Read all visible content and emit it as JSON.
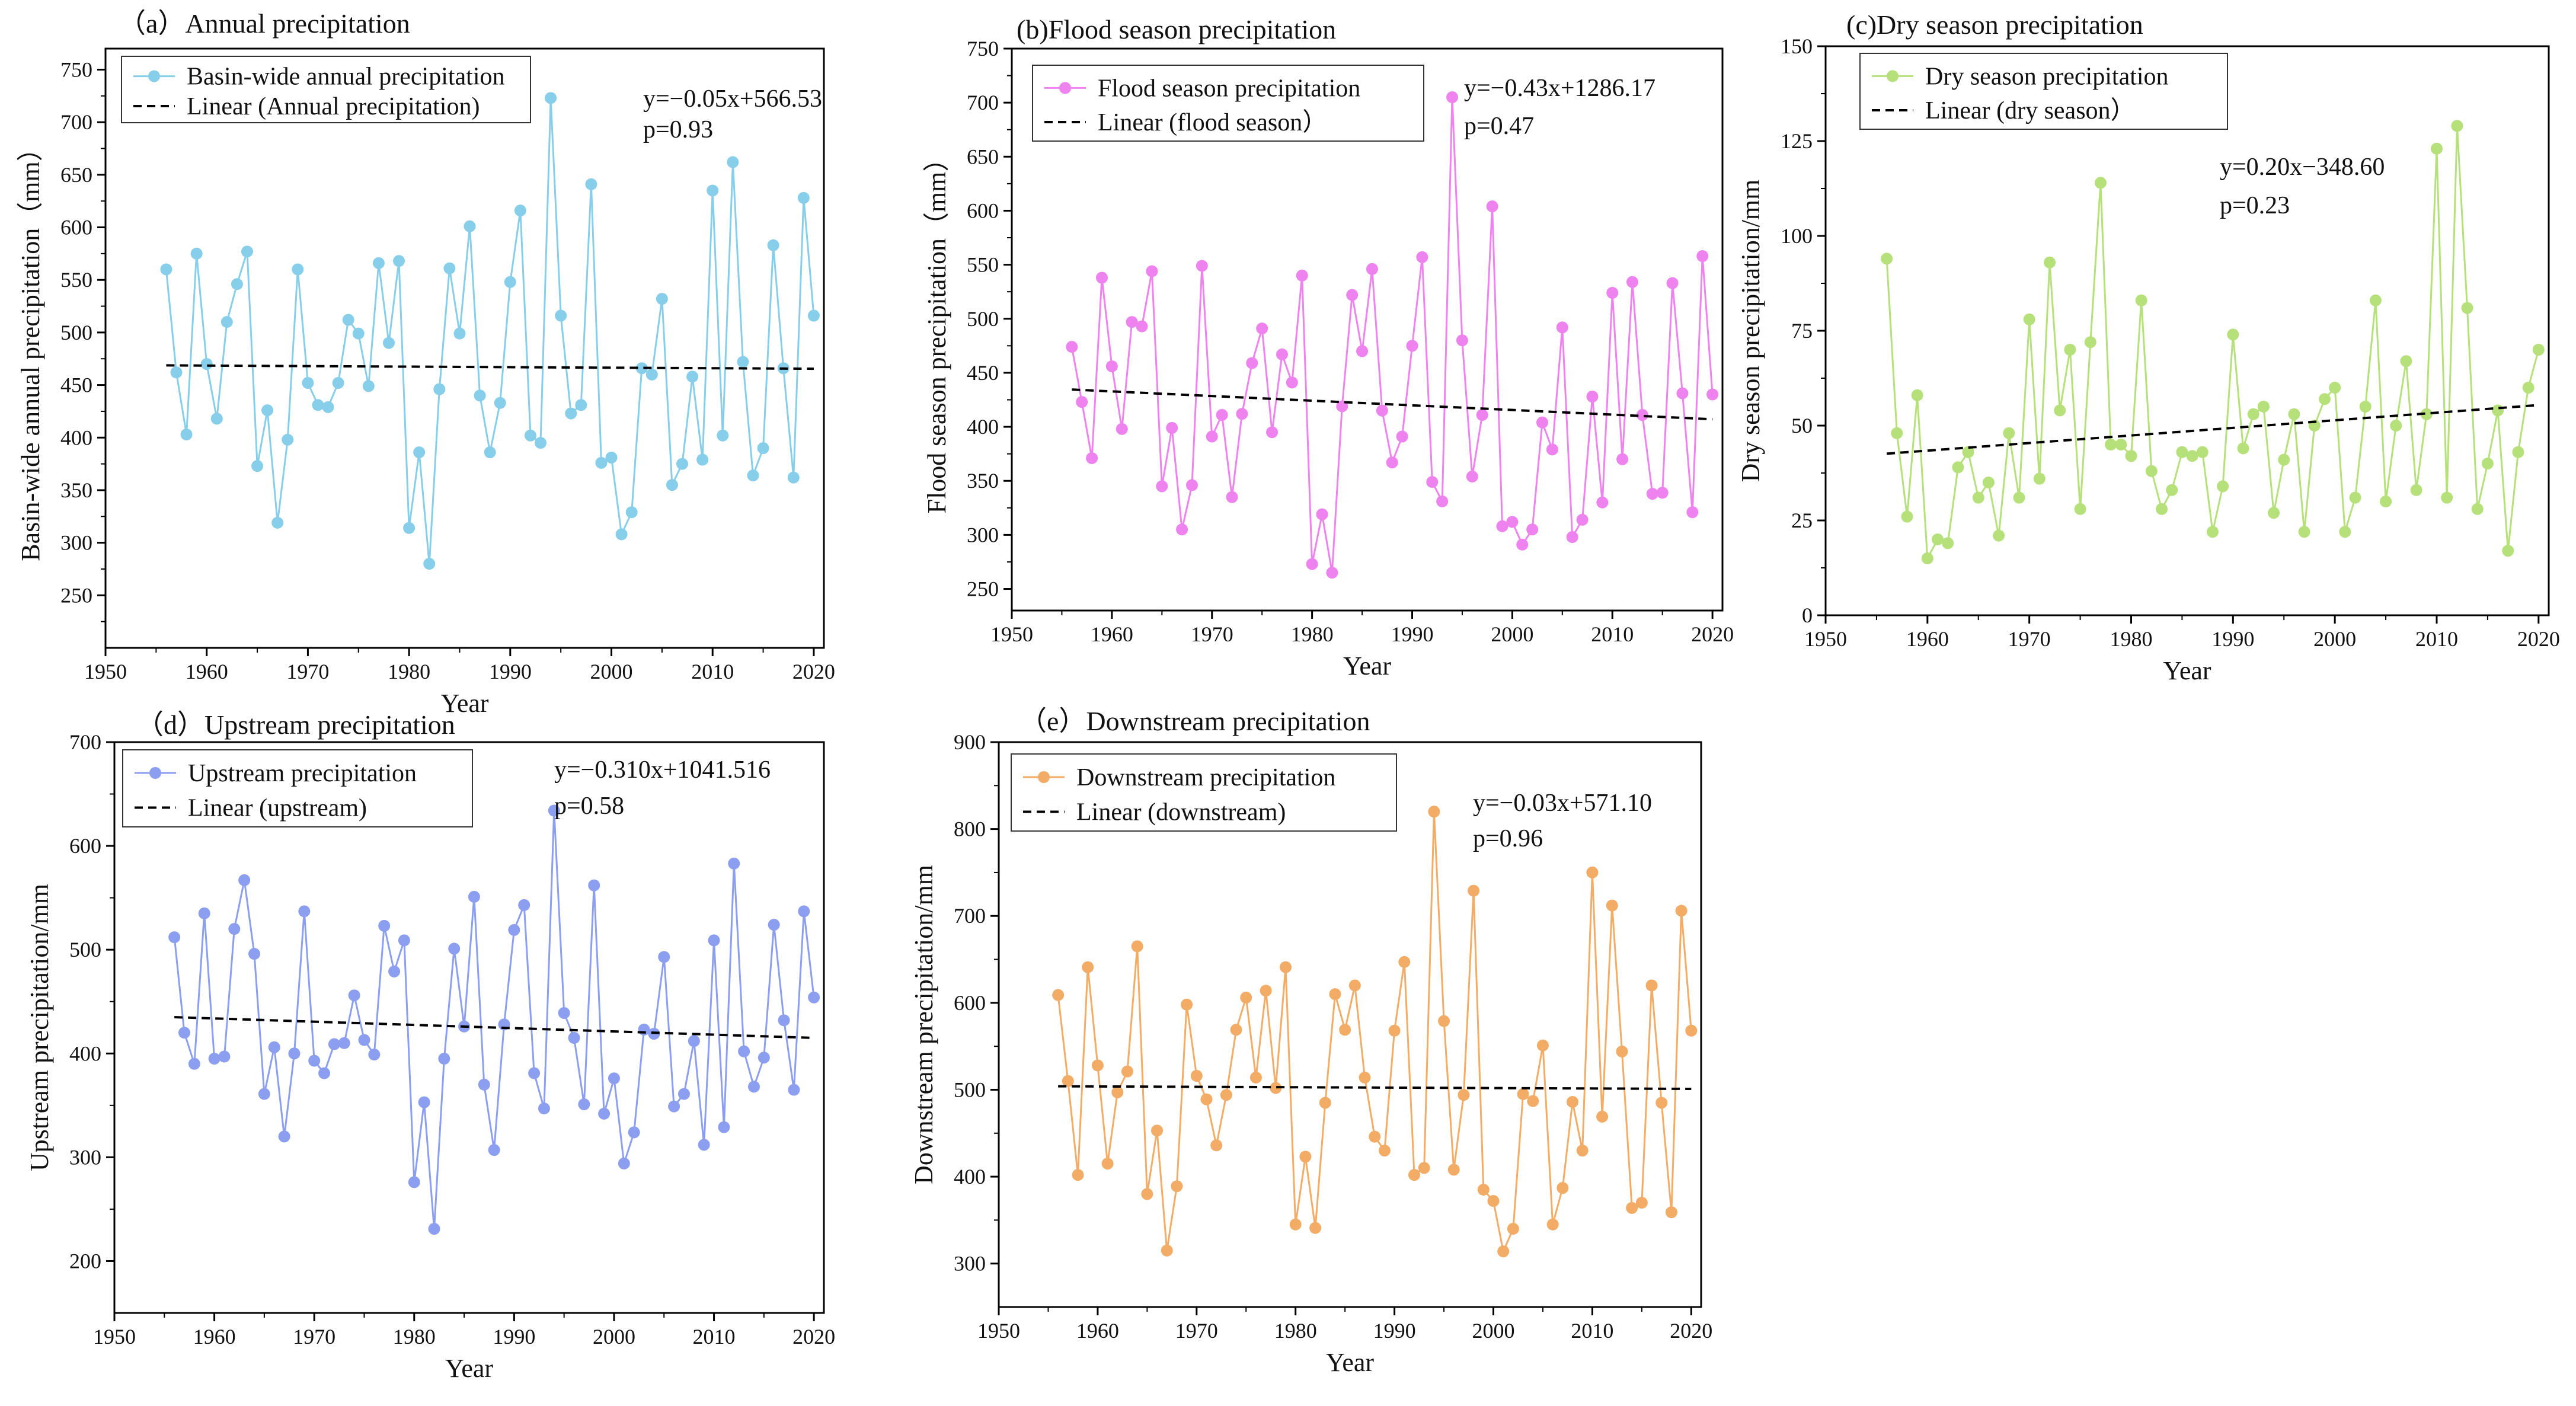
{
  "chart_data": [
    {
      "id": "a",
      "type": "line",
      "title": "（a）Annual precipitation",
      "xlabel": "Year",
      "ylabel": "Basin-wide annual precipitation（mm）",
      "xlim": [
        1950,
        2021
      ],
      "ylim": [
        200,
        770
      ],
      "xticks": [
        1950,
        1960,
        1970,
        1980,
        1990,
        2000,
        2010,
        2020
      ],
      "yticks": [
        250,
        300,
        350,
        400,
        450,
        500,
        550,
        600,
        650,
        700,
        750
      ],
      "color": "#87CEEB",
      "series": [
        {
          "name": "Basin-wide annual precipitation",
          "x": [
            1956,
            1957,
            1958,
            1959,
            1960,
            1961,
            1962,
            1963,
            1964,
            1965,
            1966,
            1967,
            1968,
            1969,
            1970,
            1971,
            1972,
            1973,
            1974,
            1975,
            1976,
            1977,
            1978,
            1979,
            1980,
            1981,
            1982,
            1983,
            1984,
            1985,
            1986,
            1987,
            1988,
            1989,
            1990,
            1991,
            1992,
            1993,
            1994,
            1995,
            1996,
            1997,
            1998,
            1999,
            2000,
            2001,
            2002,
            2003,
            2004,
            2005,
            2006,
            2007,
            2008,
            2009,
            2010,
            2011,
            2012,
            2013,
            2014,
            2015,
            2016,
            2017,
            2018,
            2019,
            2020
          ],
          "values": [
            560,
            462,
            403,
            575,
            470,
            418,
            510,
            546,
            577,
            373,
            426,
            319,
            398,
            560,
            452,
            431,
            429,
            452,
            512,
            499,
            449,
            566,
            490,
            568,
            314,
            386,
            280,
            446,
            561,
            499,
            601,
            440,
            386,
            433,
            548,
            616,
            402,
            395,
            723,
            516,
            423,
            431,
            641,
            376,
            381,
            308,
            329,
            466,
            460,
            532,
            355,
            375,
            458,
            379,
            635,
            402,
            662,
            472,
            364,
            390,
            583,
            466,
            362,
            628,
            516
          ]
        }
      ],
      "trend": {
        "name": "Linear (Annual precipitation)",
        "x": [
          1956,
          2020
        ],
        "y": [
          468.7,
          465.5
        ]
      },
      "annotations": [
        "y=−0.05x+566.53",
        "p=0.93"
      ]
    },
    {
      "id": "b",
      "type": "line",
      "title": "(b)Flood season precipitation",
      "xlabel": "Year",
      "ylabel": "Flood season precipitation（mm）",
      "xlim": [
        1950,
        2021
      ],
      "ylim": [
        230,
        750
      ],
      "xticks": [
        1950,
        1960,
        1970,
        1980,
        1990,
        2000,
        2010,
        2020
      ],
      "yticks": [
        250,
        300,
        350,
        400,
        450,
        500,
        550,
        600,
        650,
        700,
        750
      ],
      "color": "#EE82EE",
      "series": [
        {
          "name": "Flood season precipitation",
          "x": [
            1956,
            1957,
            1958,
            1959,
            1960,
            1961,
            1962,
            1963,
            1964,
            1965,
            1966,
            1967,
            1968,
            1969,
            1970,
            1971,
            1972,
            1973,
            1974,
            1975,
            1976,
            1977,
            1978,
            1979,
            1980,
            1981,
            1982,
            1983,
            1984,
            1985,
            1986,
            1987,
            1988,
            1989,
            1990,
            1991,
            1992,
            1993,
            1994,
            1995,
            1996,
            1997,
            1998,
            1999,
            2000,
            2001,
            2002,
            2003,
            2004,
            2005,
            2006,
            2007,
            2008,
            2009,
            2010,
            2011,
            2012,
            2013,
            2014,
            2015,
            2016,
            2017,
            2018,
            2019,
            2020
          ],
          "values": [
            474,
            423,
            371,
            538,
            456,
            398,
            497,
            493,
            544,
            345,
            399,
            305,
            346,
            549,
            391,
            411,
            335,
            412,
            459,
            491,
            395,
            467,
            441,
            540,
            273,
            319,
            265,
            419,
            522,
            470,
            546,
            415,
            367,
            391,
            475,
            557,
            349,
            331,
            705,
            480,
            354,
            411,
            604,
            308,
            312,
            291,
            305,
            404,
            379,
            492,
            298,
            314,
            428,
            330,
            524,
            370,
            534,
            411,
            338,
            339,
            533,
            431,
            321,
            558,
            430
          ]
        }
      ],
      "trend": {
        "name": "Linear (flood season）",
        "x": [
          1956,
          2020
        ],
        "y": [
          434.5,
          407.0
        ]
      },
      "annotations": [
        "y=−0.43x+1286.17",
        "p=0.47"
      ]
    },
    {
      "id": "c",
      "type": "line",
      "title": "(c)Dry season precipitation",
      "xlabel": "Year",
      "ylabel": "Dry season precipitation/mm",
      "xlim": [
        1950,
        2021
      ],
      "ylim": [
        0,
        150
      ],
      "xticks": [
        1950,
        1960,
        1970,
        1980,
        1990,
        2000,
        2010,
        2020
      ],
      "yticks": [
        0,
        25,
        50,
        75,
        100,
        125,
        150
      ],
      "color": "#B5E07A",
      "series": [
        {
          "name": "Dry season precipitation",
          "x": [
            1956,
            1957,
            1958,
            1959,
            1960,
            1961,
            1962,
            1963,
            1964,
            1965,
            1966,
            1967,
            1968,
            1969,
            1970,
            1971,
            1972,
            1973,
            1974,
            1975,
            1976,
            1977,
            1978,
            1979,
            1980,
            1981,
            1982,
            1983,
            1984,
            1985,
            1986,
            1987,
            1988,
            1989,
            1990,
            1991,
            1992,
            1993,
            1994,
            1995,
            1996,
            1997,
            1998,
            1999,
            2000,
            2001,
            2002,
            2003,
            2004,
            2005,
            2006,
            2007,
            2008,
            2009,
            2010,
            2011,
            2012,
            2013,
            2014,
            2015,
            2016,
            2017,
            2018,
            2019,
            2020
          ],
          "values": [
            94,
            48,
            26,
            58,
            15,
            20,
            19,
            39,
            43,
            31,
            35,
            21,
            48,
            31,
            78,
            36,
            93,
            54,
            70,
            28,
            72,
            114,
            45,
            45,
            42,
            83,
            38,
            28,
            33,
            43,
            42,
            43,
            22,
            34,
            74,
            44,
            53,
            55,
            27,
            41,
            53,
            22,
            50,
            57,
            60,
            22,
            31,
            55,
            83,
            30,
            50,
            67,
            33,
            53,
            123,
            31,
            129,
            81,
            28,
            40,
            54,
            17,
            43,
            60,
            70
          ]
        }
      ],
      "trend": {
        "name": "Linear (dry season）",
        "x": [
          1956,
          2020
        ],
        "y": [
          42.6,
          55.4
        ]
      },
      "annotations": [
        "y=0.20x−348.60",
        "p=0.23"
      ]
    },
    {
      "id": "d",
      "type": "line",
      "title": "（d）Upstream precipitation",
      "xlabel": "Year",
      "ylabel": "Upstream precipitation/mm",
      "xlim": [
        1950,
        2021
      ],
      "ylim": [
        150,
        700
      ],
      "xticks": [
        1950,
        1960,
        1970,
        1980,
        1990,
        2000,
        2010,
        2020
      ],
      "yticks": [
        200,
        300,
        400,
        500,
        600,
        700
      ],
      "color": "#8C9EF0",
      "series": [
        {
          "name": "Upstream precipitation",
          "x": [
            1956,
            1957,
            1958,
            1959,
            1960,
            1961,
            1962,
            1963,
            1964,
            1965,
            1966,
            1967,
            1968,
            1969,
            1970,
            1971,
            1972,
            1973,
            1974,
            1975,
            1976,
            1977,
            1978,
            1979,
            1980,
            1981,
            1982,
            1983,
            1984,
            1985,
            1986,
            1987,
            1988,
            1989,
            1990,
            1991,
            1992,
            1993,
            1994,
            1995,
            1996,
            1997,
            1998,
            1999,
            2000,
            2001,
            2002,
            2003,
            2004,
            2005,
            2006,
            2007,
            2008,
            2009,
            2010,
            2011,
            2012,
            2013,
            2014,
            2015,
            2016,
            2017,
            2018,
            2019,
            2020
          ],
          "values": [
            512,
            420,
            390,
            535,
            395,
            397,
            520,
            567,
            496,
            361,
            406,
            320,
            400,
            537,
            393,
            381,
            409,
            410,
            456,
            413,
            399,
            523,
            479,
            509,
            276,
            353,
            231,
            395,
            501,
            426,
            551,
            370,
            307,
            428,
            519,
            543,
            381,
            347,
            634,
            439,
            415,
            351,
            562,
            342,
            376,
            294,
            324,
            423,
            419,
            493,
            349,
            361,
            412,
            312,
            509,
            329,
            583,
            402,
            368,
            396,
            524,
            432,
            365,
            537,
            454
          ]
        }
      ],
      "trend": {
        "name": "Linear (upstream)",
        "x": [
          1956,
          2020
        ],
        "y": [
          435.0,
          415.0
        ]
      },
      "annotations": [
        "y=−0.310x+1041.516",
        "p=0.58"
      ]
    },
    {
      "id": "e",
      "type": "line",
      "title": "（e）Downstream precipitation",
      "xlabel": "Year",
      "ylabel": "Downstream precipitation/mm",
      "xlim": [
        1950,
        2021
      ],
      "ylim": [
        250,
        900
      ],
      "xticks": [
        1950,
        1960,
        1970,
        1980,
        1990,
        2000,
        2010,
        2020
      ],
      "yticks": [
        300,
        400,
        500,
        600,
        700,
        800,
        900
      ],
      "color": "#F2AC66",
      "series": [
        {
          "name": "Downstream precipitation",
          "x": [
            1956,
            1957,
            1958,
            1959,
            1960,
            1961,
            1962,
            1963,
            1964,
            1965,
            1966,
            1967,
            1968,
            1969,
            1970,
            1971,
            1972,
            1973,
            1974,
            1975,
            1976,
            1977,
            1978,
            1979,
            1980,
            1981,
            1982,
            1983,
            1984,
            1985,
            1986,
            1987,
            1988,
            1989,
            1990,
            1991,
            1992,
            1993,
            1994,
            1995,
            1996,
            1997,
            1998,
            1999,
            2000,
            2001,
            2002,
            2003,
            2004,
            2005,
            2006,
            2007,
            2008,
            2009,
            2010,
            2011,
            2012,
            2013,
            2014,
            2015,
            2016,
            2017,
            2018,
            2019,
            2020
          ],
          "values": [
            609,
            510,
            402,
            641,
            528,
            415,
            497,
            521,
            665,
            380,
            453,
            315,
            389,
            598,
            516,
            489,
            436,
            494,
            569,
            606,
            514,
            614,
            502,
            641,
            345,
            423,
            341,
            485,
            610,
            569,
            620,
            514,
            446,
            430,
            568,
            647,
            402,
            410,
            820,
            579,
            408,
            494,
            729,
            385,
            372,
            314,
            340,
            495,
            487,
            551,
            345,
            387,
            486,
            430,
            750,
            469,
            712,
            544,
            364,
            370,
            620,
            485,
            359,
            706,
            568
          ]
        }
      ],
      "trend": {
        "name": "Linear (downstream)",
        "x": [
          1956,
          2020
        ],
        "y": [
          504.0,
          501.0
        ]
      },
      "annotations": [
        "y=−0.03x+571.10",
        "p=0.96"
      ]
    }
  ]
}
